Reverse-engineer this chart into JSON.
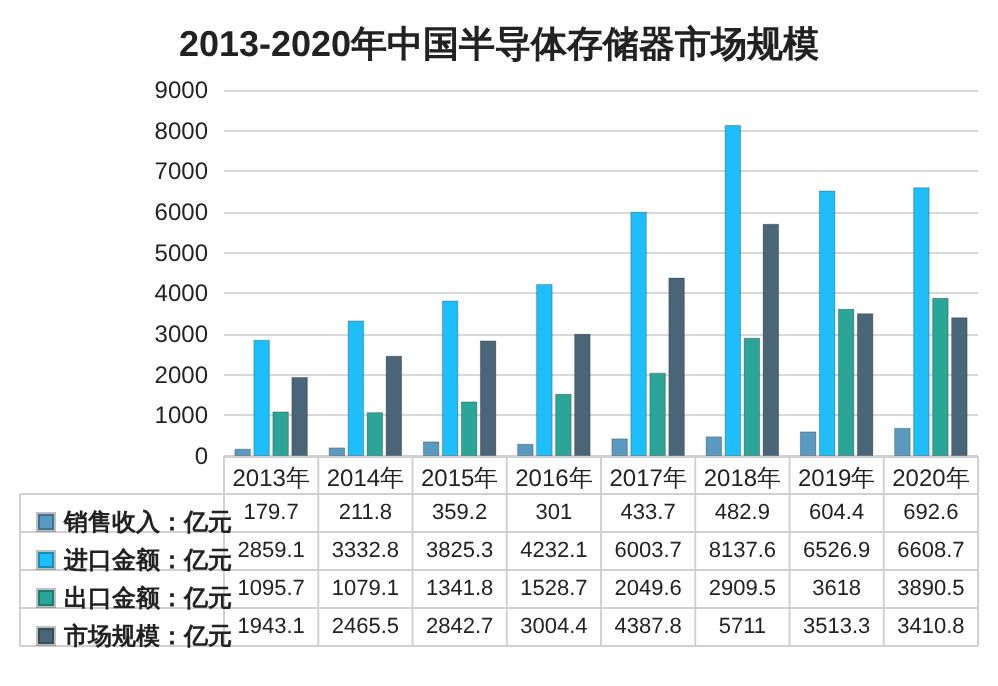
{
  "chart_data": {
    "type": "bar",
    "title": "2013-2020年中国半导体存储器市场规模",
    "categories": [
      "2013年",
      "2014年",
      "2015年",
      "2016年",
      "2017年",
      "2018年",
      "2019年",
      "2020年"
    ],
    "series": [
      {
        "name": "销售收入：亿元",
        "color": "#5a9ac0",
        "values": [
          179.7,
          211.8,
          359.2,
          301,
          433.7,
          482.9,
          604.4,
          692.6
        ]
      },
      {
        "name": "进口金额：亿元",
        "color": "#1ebefa",
        "values": [
          2859.1,
          3332.8,
          3825.3,
          4232.1,
          6003.7,
          8137.6,
          6526.9,
          6608.7
        ]
      },
      {
        "name": "出口金额：亿元",
        "color": "#2aa597",
        "values": [
          1095.7,
          1079.1,
          1341.8,
          1528.7,
          2049.6,
          2909.5,
          3618,
          3890.5
        ]
      },
      {
        "name": "市场规模：亿元",
        "color": "#4a6577",
        "values": [
          1943.1,
          2465.5,
          2842.7,
          3004.4,
          4387.8,
          5711,
          3513.3,
          3410.8
        ]
      }
    ],
    "ylim": [
      0,
      9000
    ],
    "yticks": [
      0,
      1000,
      2000,
      3000,
      4000,
      5000,
      6000,
      7000,
      8000,
      9000
    ],
    "grid": "y",
    "legend": "bottom",
    "data_labels": true
  }
}
